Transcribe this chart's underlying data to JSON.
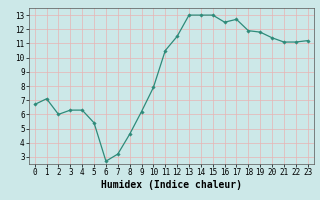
{
  "xlabel": "Humidex (Indice chaleur)",
  "ylabel": "",
  "x": [
    0,
    1,
    2,
    3,
    4,
    5,
    6,
    7,
    8,
    9,
    10,
    11,
    12,
    13,
    14,
    15,
    16,
    17,
    18,
    19,
    20,
    21,
    22,
    23
  ],
  "y": [
    6.7,
    7.1,
    6.0,
    6.3,
    6.3,
    5.4,
    2.7,
    3.2,
    4.6,
    6.2,
    7.9,
    10.5,
    11.5,
    13.0,
    13.0,
    13.0,
    12.5,
    12.7,
    11.9,
    11.8,
    11.4,
    11.1,
    11.1,
    11.2
  ],
  "line_color": "#2e8b7a",
  "marker": "D",
  "marker_size": 1.8,
  "bg_color": "#cce8e8",
  "grid_color": "#e8b4b4",
  "xlim": [
    -0.5,
    23.5
  ],
  "ylim": [
    2.5,
    13.5
  ],
  "yticks": [
    3,
    4,
    5,
    6,
    7,
    8,
    9,
    10,
    11,
    12,
    13
  ],
  "xticks": [
    0,
    1,
    2,
    3,
    4,
    5,
    6,
    7,
    8,
    9,
    10,
    11,
    12,
    13,
    14,
    15,
    16,
    17,
    18,
    19,
    20,
    21,
    22,
    23
  ],
  "tick_fontsize": 5.5,
  "xlabel_fontsize": 7.0,
  "line_width": 0.9
}
